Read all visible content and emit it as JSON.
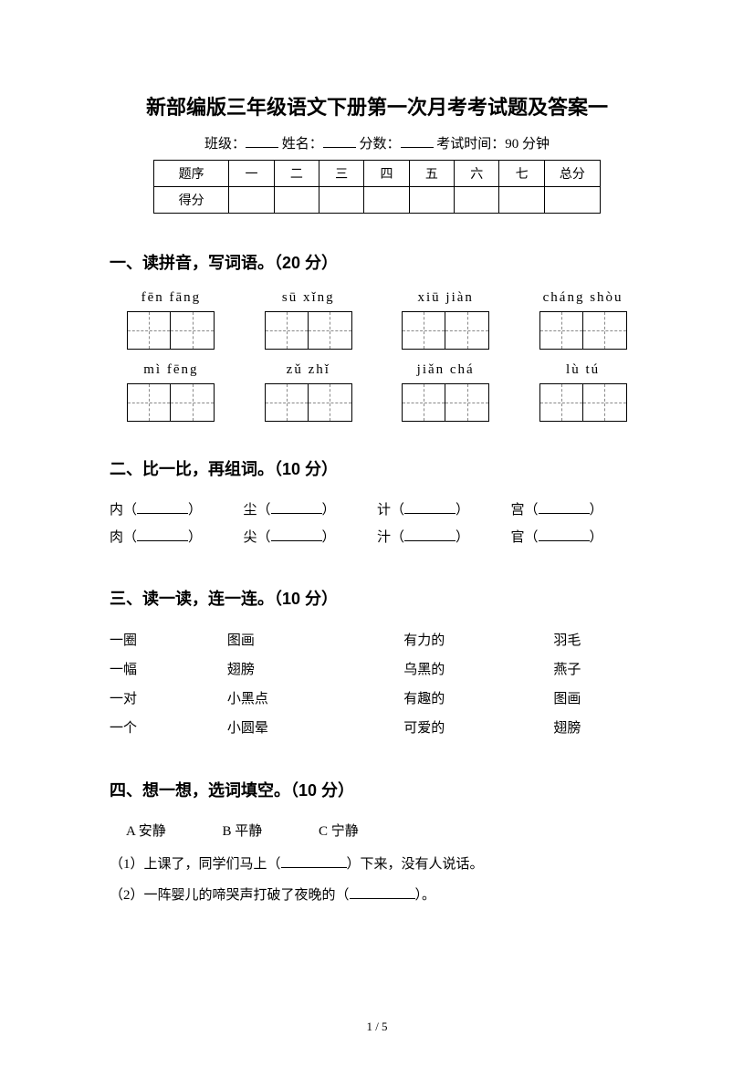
{
  "title": "新部编版三年级语文下册第一次月考考试题及答案一",
  "formLine": {
    "classLabel": "班级：",
    "nameLabel": "姓名：",
    "scoreLabel": "分数：",
    "examTimeLabel": "考试时间：90 分钟"
  },
  "scoreTable": {
    "rowLabels": [
      "题序",
      "得分"
    ],
    "columns": [
      "一",
      "二",
      "三",
      "四",
      "五",
      "六",
      "七",
      "总分"
    ]
  },
  "section1": {
    "heading": "一、读拼音，写词语。（20 分）",
    "row1": [
      "fēn fāng",
      "sū  xǐng",
      "xiū  jiàn",
      "cháng shòu"
    ],
    "row2": [
      "mì fēng",
      "zǔ zhǐ",
      "jiǎn chá",
      "lù  tú"
    ]
  },
  "section2": {
    "heading": "二、比一比，再组词。（10 分）",
    "pairs": [
      [
        "内",
        "肉"
      ],
      [
        "尘",
        "尖"
      ],
      [
        "计",
        "汁"
      ],
      [
        "宫",
        "官"
      ]
    ]
  },
  "section3": {
    "heading": "三、读一读，连一连。（10 分）",
    "rows": [
      [
        "一圈",
        "图画",
        "有力的",
        "羽毛"
      ],
      [
        "一幅",
        "翅膀",
        "乌黑的",
        "燕子"
      ],
      [
        "一对",
        "小黑点",
        "有趣的",
        "图画"
      ],
      [
        "一个",
        "小圆晕",
        "可爱的",
        "翅膀"
      ]
    ]
  },
  "section4": {
    "heading": "四、想一想，选词填空。（10 分）",
    "options": [
      "A 安静",
      "B 平静",
      "C 宁静"
    ],
    "sentences": [
      {
        "prefix": "（1）上课了，同学们马上（",
        "suffix": "）下来，没有人说话。"
      },
      {
        "prefix": "（2）一阵婴儿的啼哭声打破了夜晚的（",
        "suffix": "）。"
      }
    ]
  },
  "pager": "1 / 5"
}
